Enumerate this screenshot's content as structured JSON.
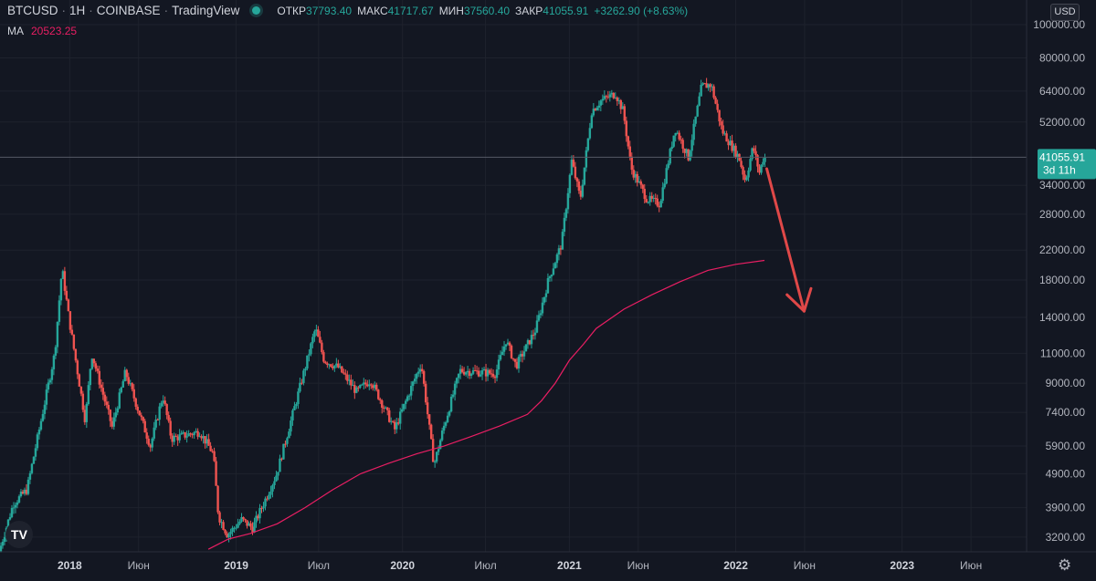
{
  "header": {
    "symbol": "BTCUSD",
    "interval": "1H",
    "exchange": "COINBASE",
    "source": "TradingView",
    "open_label": "ОТКР",
    "open": "37793.40",
    "high_label": "МАКС",
    "high": "41717.67",
    "low_label": "МИН",
    "low": "37560.40",
    "close_label": "ЗАКР",
    "close": "41055.91",
    "change": "+3262.90 (+8.63%)",
    "market_status": "open"
  },
  "ma_indicator": {
    "label": "MA",
    "value": "20523.25"
  },
  "currency": "USD",
  "last_price": {
    "value": "41055.91",
    "countdown": "3d 11h",
    "price": 41055.91
  },
  "colors": {
    "background": "#131722",
    "up": "#26a69a",
    "down": "#ef5350",
    "ma": "#e91e63",
    "arrow": "#e04848",
    "text": "#b2b5be",
    "grid": "#1e222d"
  },
  "logo": "TV",
  "settings_icon": "gear-icon",
  "chart_data": {
    "type": "candlestick",
    "y_scale": "log",
    "ylim": [
      2900,
      118000
    ],
    "xlim": [
      "2017-08-01",
      "2023-10-01"
    ],
    "y_ticks": [
      3200,
      3900,
      4900,
      5900,
      7400,
      9000,
      11000,
      14000,
      18000,
      22000,
      28000,
      34000,
      41055.91,
      52000,
      64000,
      80000,
      100000
    ],
    "y_tick_labels": [
      "3200.00",
      "3900.00",
      "4900.00",
      "5900.00",
      "7400.00",
      "9000.00",
      "11000.00",
      "14000.00",
      "18000.00",
      "22000.00",
      "28000.00",
      "34000.00",
      "41055.91",
      "52000.00",
      "64000.00",
      "80000.00",
      "100000.00"
    ],
    "x_ticks": [
      {
        "date": "2018-01-01",
        "label": "2018",
        "major": true
      },
      {
        "date": "2018-06-01",
        "label": "Июн",
        "major": false
      },
      {
        "date": "2019-01-01",
        "label": "2019",
        "major": true
      },
      {
        "date": "2019-07-01",
        "label": "Июл",
        "major": false
      },
      {
        "date": "2020-01-01",
        "label": "2020",
        "major": true
      },
      {
        "date": "2020-07-01",
        "label": "Июл",
        "major": false
      },
      {
        "date": "2021-01-01",
        "label": "2021",
        "major": true
      },
      {
        "date": "2021-06-01",
        "label": "Июн",
        "major": false
      },
      {
        "date": "2022-01-01",
        "label": "2022",
        "major": true
      },
      {
        "date": "2022-06-01",
        "label": "Июн",
        "major": false
      },
      {
        "date": "2023-01-01",
        "label": "2023",
        "major": true
      },
      {
        "date": "2023-06-01",
        "label": "Июн",
        "major": false
      }
    ],
    "price_anchors": [
      [
        "2017-08-01",
        2900
      ],
      [
        "2017-09-01",
        4000
      ],
      [
        "2017-10-01",
        4400
      ],
      [
        "2017-11-01",
        7000
      ],
      [
        "2017-12-01",
        11000
      ],
      [
        "2017-12-17",
        19500
      ],
      [
        "2018-01-01",
        14000
      ],
      [
        "2018-02-06",
        7000
      ],
      [
        "2018-02-20",
        11000
      ],
      [
        "2018-04-06",
        6700
      ],
      [
        "2018-05-05",
        9700
      ],
      [
        "2018-06-29",
        5900
      ],
      [
        "2018-07-26",
        8300
      ],
      [
        "2018-08-14",
        6200
      ],
      [
        "2018-10-15",
        6500
      ],
      [
        "2018-11-14",
        5600
      ],
      [
        "2018-11-25",
        3700
      ],
      [
        "2018-12-15",
        3250
      ],
      [
        "2019-01-15",
        3600
      ],
      [
        "2019-02-08",
        3400
      ],
      [
        "2019-04-02",
        4900
      ],
      [
        "2019-05-15",
        8000
      ],
      [
        "2019-06-26",
        13000
      ],
      [
        "2019-07-15",
        10500
      ],
      [
        "2019-08-15",
        10000
      ],
      [
        "2019-09-24",
        8500
      ],
      [
        "2019-10-25",
        9200
      ],
      [
        "2019-12-17",
        6600
      ],
      [
        "2020-01-20",
        8600
      ],
      [
        "2020-02-13",
        10300
      ],
      [
        "2020-03-12",
        5200
      ],
      [
        "2020-04-01",
        6600
      ],
      [
        "2020-05-08",
        9800
      ],
      [
        "2020-07-25",
        9600
      ],
      [
        "2020-08-17",
        12000
      ],
      [
        "2020-09-08",
        10100
      ],
      [
        "2020-10-21",
        12900
      ],
      [
        "2020-11-18",
        18000
      ],
      [
        "2020-12-17",
        23000
      ],
      [
        "2021-01-08",
        40000
      ],
      [
        "2021-01-27",
        31000
      ],
      [
        "2021-02-21",
        56000
      ],
      [
        "2021-03-13",
        60000
      ],
      [
        "2021-04-14",
        63000
      ],
      [
        "2021-05-01",
        56000
      ],
      [
        "2021-05-19",
        38000
      ],
      [
        "2021-06-22",
        31000
      ],
      [
        "2021-07-20",
        30000
      ],
      [
        "2021-08-23",
        50000
      ],
      [
        "2021-09-21",
        41000
      ],
      [
        "2021-10-20",
        66000
      ],
      [
        "2021-11-10",
        67000
      ],
      [
        "2021-12-04",
        49000
      ],
      [
        "2022-01-10",
        41000
      ],
      [
        "2022-01-24",
        35000
      ],
      [
        "2022-02-10",
        44000
      ],
      [
        "2022-02-24",
        37000
      ],
      [
        "2022-03-05",
        41055.91
      ]
    ],
    "series": [
      {
        "name": "MA",
        "type": "line",
        "points": [
          [
            "2018-11-01",
            2950
          ],
          [
            "2018-12-15",
            3160
          ],
          [
            "2019-02-01",
            3280
          ],
          [
            "2019-04-01",
            3500
          ],
          [
            "2019-06-01",
            3900
          ],
          [
            "2019-08-01",
            4400
          ],
          [
            "2019-10-01",
            4900
          ],
          [
            "2019-12-01",
            5250
          ],
          [
            "2020-02-01",
            5600
          ],
          [
            "2020-04-01",
            5900
          ],
          [
            "2020-06-01",
            6300
          ],
          [
            "2020-08-01",
            6750
          ],
          [
            "2020-10-01",
            7300
          ],
          [
            "2020-11-01",
            8000
          ],
          [
            "2020-12-01",
            9000
          ],
          [
            "2021-01-01",
            10500
          ],
          [
            "2021-02-01",
            11700
          ],
          [
            "2021-03-01",
            13000
          ],
          [
            "2021-05-01",
            14800
          ],
          [
            "2021-07-01",
            16300
          ],
          [
            "2021-09-01",
            17800
          ],
          [
            "2021-11-01",
            19200
          ],
          [
            "2022-01-01",
            20000
          ],
          [
            "2022-03-05",
            20523.25
          ]
        ]
      }
    ],
    "annotation": {
      "type": "arrow",
      "from": [
        "2022-03-10",
        38000
      ],
      "to": [
        "2022-05-31",
        14600
      ]
    }
  }
}
